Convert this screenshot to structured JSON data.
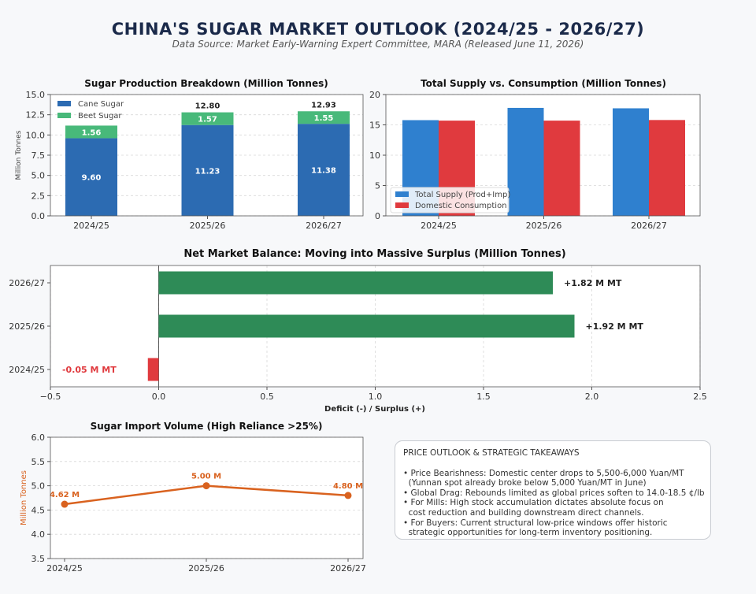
{
  "page": {
    "title": "CHINA'S SUGAR MARKET OUTLOOK (2024/25 - 2026/27)",
    "subtitle": "Data Source: Market Early-Warning Expert Committee, MARA (Released June 11, 2026)"
  },
  "colors": {
    "cane": "#2c6bb2",
    "beet": "#48b97a",
    "supply": "#2f80cf",
    "consumption": "#e03a3e",
    "surplus": "#2e8b57",
    "deficit": "#e03a3e",
    "imports": "#d9621f",
    "title": "#1b2a4a"
  },
  "chart_data": [
    {
      "id": "production",
      "type": "bar",
      "stacked": true,
      "title": "Sugar Production Breakdown (Million Tonnes)",
      "ylabel": "Million Tonnes",
      "categories": [
        "2024/25",
        "2025/26",
        "2026/27"
      ],
      "series": [
        {
          "name": "Cane Sugar",
          "values": [
            9.6,
            11.23,
            11.38
          ],
          "labels": [
            "9.60",
            "11.23",
            "11.38"
          ]
        },
        {
          "name": "Beet Sugar",
          "values": [
            1.56,
            1.57,
            1.55
          ],
          "labels": [
            "1.56",
            "1.57",
            "1.55"
          ]
        }
      ],
      "totals": [
        "",
        "12.80",
        "12.93"
      ],
      "ylim": [
        0,
        15
      ],
      "yticks": [
        "0.0",
        "2.5",
        "5.0",
        "7.5",
        "10.0",
        "12.5",
        "15.0"
      ],
      "grid": true,
      "legend": "top-left"
    },
    {
      "id": "supply",
      "type": "bar",
      "title": "Total Supply vs. Consumption (Million Tonnes)",
      "categories": [
        "2024/25",
        "2025/26",
        "2026/27"
      ],
      "series": [
        {
          "name": "Total Supply (Prod+Imp)",
          "values": [
            15.78,
            17.8,
            17.73
          ]
        },
        {
          "name": "Domestic Consumption",
          "values": [
            15.7,
            15.7,
            15.8
          ]
        }
      ],
      "ylim": [
        0,
        20
      ],
      "yticks": [
        "0",
        "5",
        "10",
        "15",
        "20"
      ],
      "grid": true,
      "legend": "bottom-left"
    },
    {
      "id": "balance",
      "type": "bar",
      "orientation": "horizontal",
      "title": "Net Market Balance: Moving into Massive Surplus (Million Tonnes)",
      "xlabel": "Deficit (-) / Surplus (+)",
      "categories": [
        "2024/25",
        "2025/26",
        "2026/27"
      ],
      "values": [
        -0.05,
        1.92,
        1.82
      ],
      "labels": [
        "-0.05 M MT",
        "+1.92 M MT",
        "+1.82 M MT"
      ],
      "xlim": [
        -0.5,
        2.5
      ],
      "xticks": [
        "−0.5",
        "0.0",
        "0.5",
        "1.0",
        "1.5",
        "2.0",
        "2.5"
      ],
      "grid": true
    },
    {
      "id": "imports",
      "type": "line",
      "title": "Sugar Import Volume (High Reliance >25%)",
      "ylabel": "Million Tonnes",
      "x": [
        "2024/25",
        "2025/26",
        "2026/27"
      ],
      "values": [
        4.62,
        5.0,
        4.8
      ],
      "labels": [
        "4.62 M",
        "5.00 M",
        "4.80 M"
      ],
      "ylim": [
        3.5,
        6.0
      ],
      "yticks": [
        "3.5",
        "4.0",
        "4.5",
        "5.0",
        "5.5",
        "6.0"
      ],
      "grid": true
    }
  ],
  "takeaways": {
    "heading": "PRICE OUTLOOK & STRATEGIC TAKEAWAYS",
    "bullets": [
      "• Price Bearishness: Domestic center drops to 5,500-6,000 Yuan/MT\n  (Yunnan spot already broke below 5,000 Yuan/MT in June)",
      "• Global Drag: Rebounds limited as global prices soften to 14.0-18.5 ¢/lb",
      "• For Mills: High stock accumulation dictates absolute focus on\n  cost reduction and building downstream direct channels.",
      "• For Buyers: Current structural low-price windows offer historic\n  strategic opportunities for long-term inventory positioning."
    ]
  }
}
